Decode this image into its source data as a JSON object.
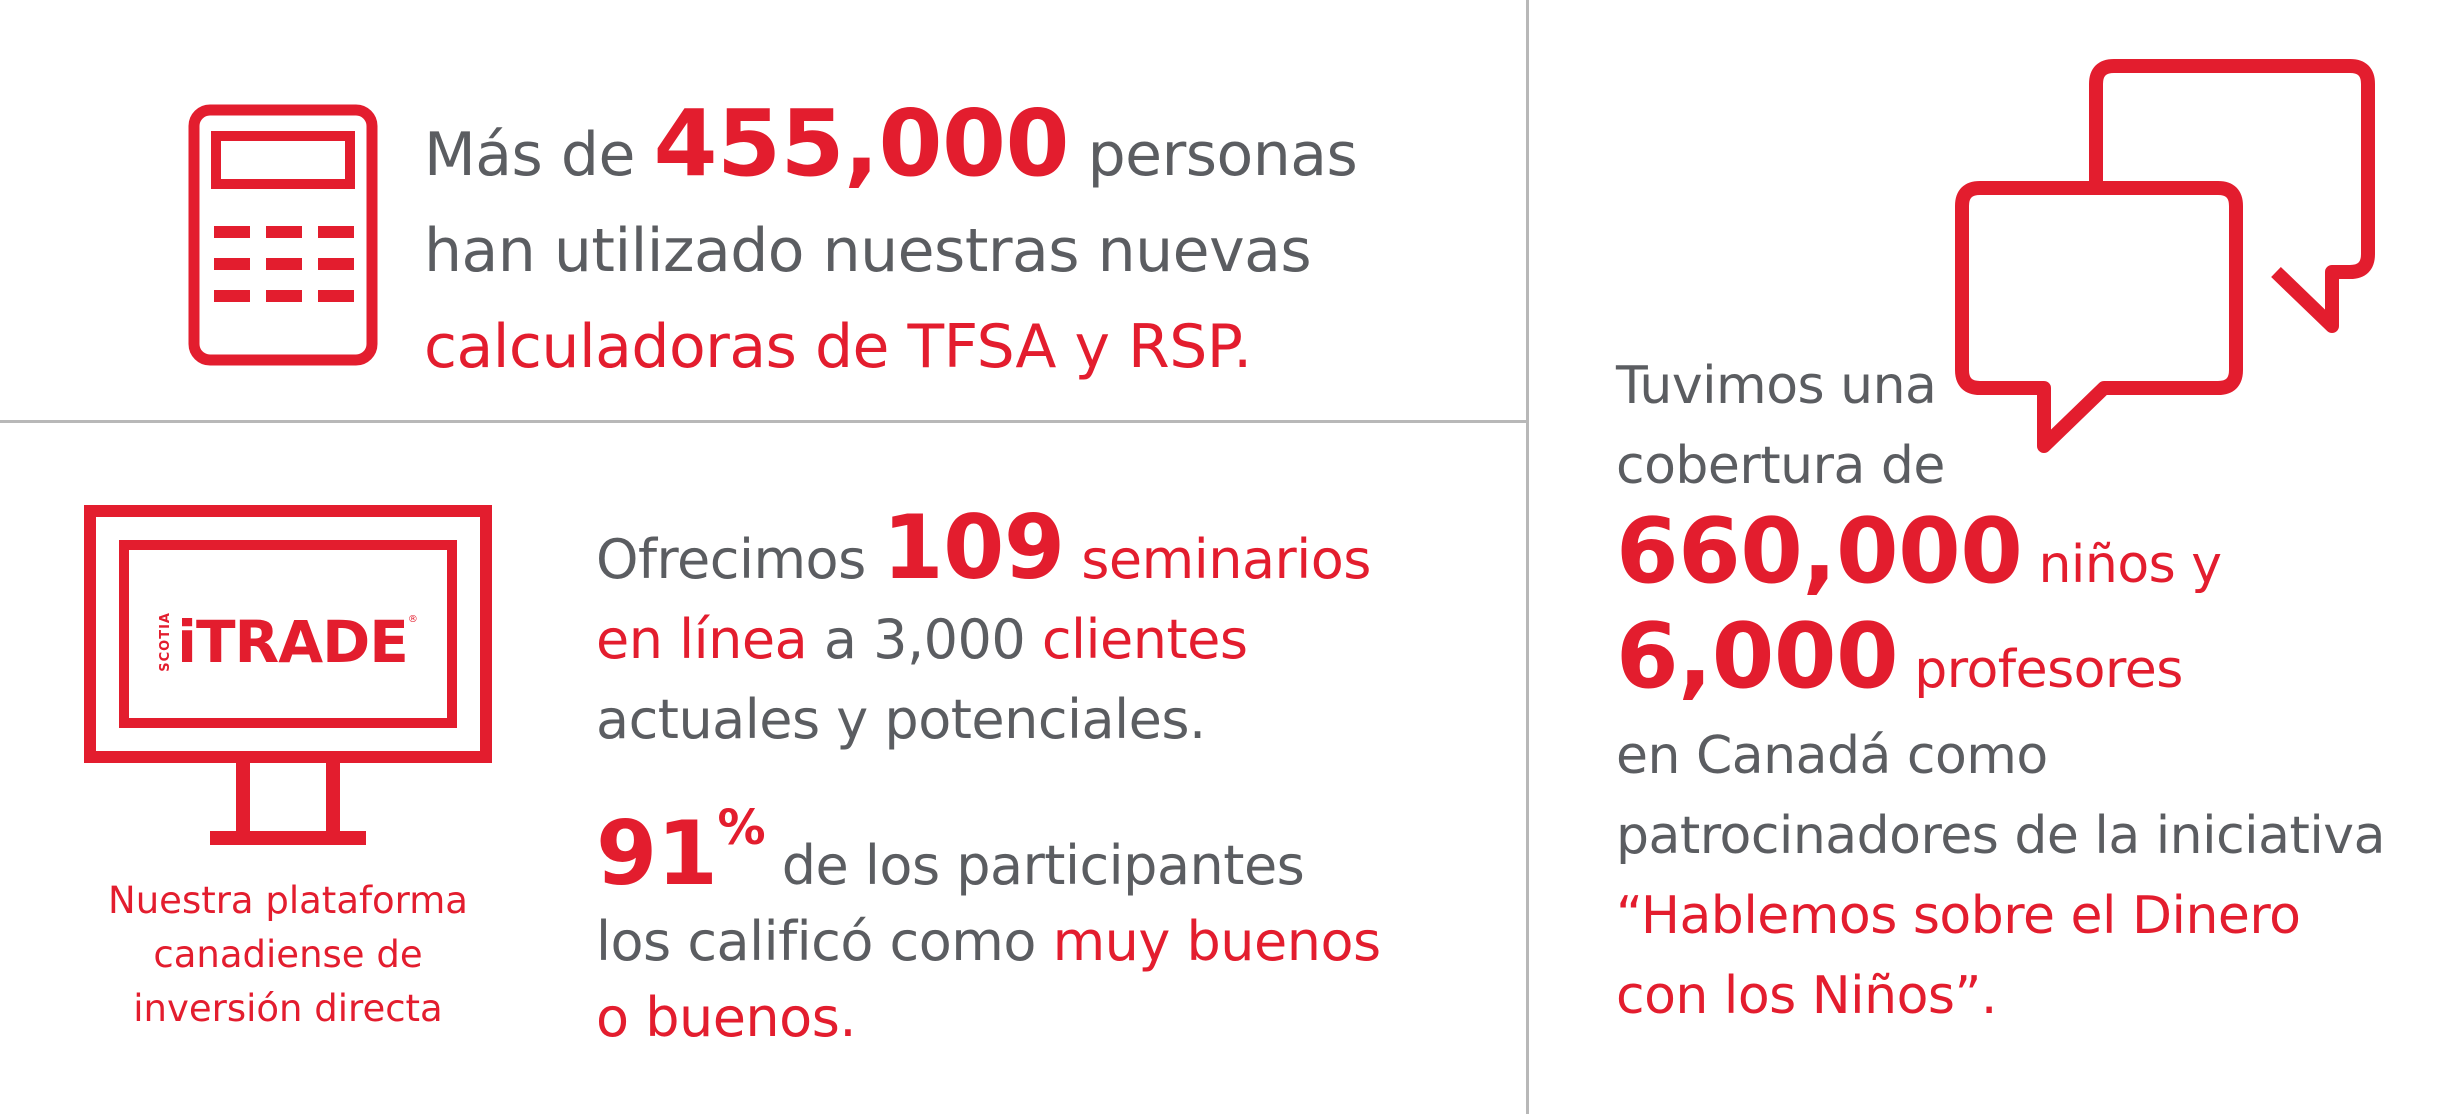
{
  "calculators": {
    "line1_prefix": "Más de",
    "number": "455,000",
    "line1_suffix": "personas",
    "line2": "han utilizado nuestras nuevas",
    "line3": "calculadoras de TFSA y RSP."
  },
  "platform": {
    "logo_scotia": "SCOTIA",
    "logo_brand": "iTRADE",
    "logo_reg": "®",
    "caption_lines": [
      "Nuestra plataforma",
      "canadiense de",
      "inversión directa"
    ]
  },
  "seminars": {
    "prefix": "Ofrecimos",
    "number": "109",
    "word1": "seminarios",
    "word2": "en línea",
    "mid": "a 3,000",
    "word3": "clientes",
    "line3": "actuales y potenciales."
  },
  "rating": {
    "number": "91",
    "percent": "%",
    "line1_suffix": "de los participantes",
    "line2_prefix": "los calificó como",
    "line2_red": "muy buenos",
    "line3": "o buenos."
  },
  "coverage": {
    "line1": "Tuvimos una",
    "line2": "cobertura de",
    "number1": "660,000",
    "label1": "niños y",
    "number2": "6,000",
    "label2": "profesores",
    "line5": "en Canadá como",
    "line6": "patrocinadores de la iniciativa",
    "line7": "“Hablemos sobre el Dinero",
    "line8": "con los Niños”."
  },
  "colors": {
    "accent": "#e31d2e",
    "text": "#5b5d61",
    "divider": "#b8b8b8"
  },
  "icons": [
    "calculator-icon",
    "computer-monitor-icon",
    "speech-bubbles-icon"
  ]
}
